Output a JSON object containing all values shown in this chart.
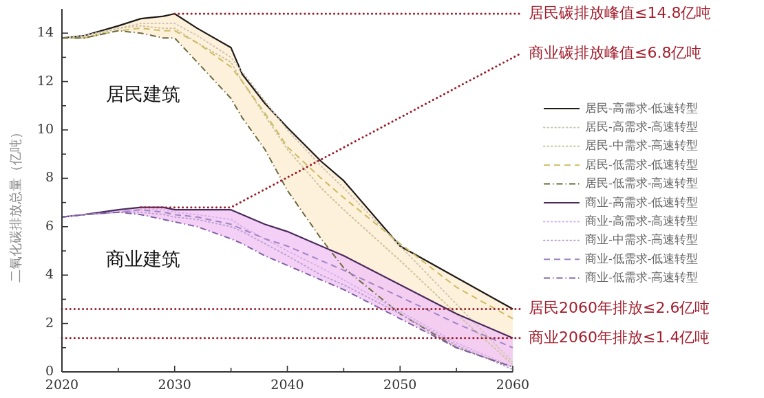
{
  "chart_data": {
    "type": "line",
    "ylabel": "二氧化碳排放总量（亿吨）",
    "x": [
      2020,
      2022,
      2025,
      2027,
      2029,
      2030,
      2032,
      2035,
      2036,
      2038,
      2040,
      2043,
      2045,
      2050,
      2055,
      2060
    ],
    "xlim": [
      2020,
      2060
    ],
    "xticks": [
      2020,
      {
        "value": 2025,
        "label": null
      },
      2030,
      {
        "value": 2035,
        "label": null
      },
      2040,
      {
        "value": 2045,
        "label": null
      },
      2050,
      {
        "value": 2055,
        "label": null
      },
      2060
    ],
    "ylim": [
      0,
      15
    ],
    "yticks": [
      0,
      {
        "value": 1,
        "label": null
      },
      2,
      {
        "value": 3,
        "label": null
      },
      4,
      {
        "value": 5,
        "label": null
      },
      6,
      {
        "value": 7,
        "label": null
      },
      8,
      {
        "value": 9,
        "label": null
      },
      10,
      {
        "value": 11,
        "label": null
      },
      12,
      {
        "value": 13,
        "label": null
      },
      14
    ],
    "legend": "right",
    "marker": "none",
    "series": [
      {
        "name": "居民-高需求-低速转型",
        "color": "#1e1a16",
        "line_style": "solid",
        "values": [
          13.8,
          13.9,
          14.3,
          14.6,
          14.7,
          14.8,
          14.2,
          13.4,
          12.3,
          11.1,
          10.1,
          8.7,
          7.9,
          5.2,
          3.9,
          2.6
        ],
        "lower": [
          13.8,
          13.8,
          14.1,
          14.0,
          13.8,
          13.8,
          12.8,
          11.3,
          10.5,
          9.2,
          7.5,
          5.5,
          4.3,
          2.4,
          1.0,
          0.2
        ],
        "upper": [
          13.8,
          13.9,
          14.3,
          14.6,
          14.7,
          14.8,
          14.2,
          13.4,
          12.3,
          11.1,
          10.1,
          8.7,
          7.9,
          5.2,
          3.9,
          2.6
        ]
      },
      {
        "name": "居民-高需求-高速转型",
        "color": "#cfc6b4",
        "line_style": "dotted",
        "values": [
          13.8,
          13.9,
          14.2,
          14.4,
          14.4,
          14.4,
          13.9,
          13.0,
          12.4,
          11.2,
          10.0,
          8.5,
          7.6,
          5.2,
          2.8,
          0.4
        ]
      },
      {
        "name": "居民-中需求-高速转型",
        "color": "#c9c39a",
        "line_style": "dotted",
        "values": [
          13.8,
          13.8,
          14.2,
          14.3,
          14.2,
          14.2,
          13.6,
          12.8,
          12.0,
          10.6,
          9.2,
          7.6,
          6.7,
          4.6,
          2.4,
          0.3
        ]
      },
      {
        "name": "居民-低需求-低速转型",
        "color": "#cdbb62",
        "line_style": "dashed",
        "values": [
          13.8,
          13.8,
          14.1,
          14.2,
          14.1,
          14.1,
          13.6,
          12.6,
          12.0,
          10.7,
          9.3,
          8.0,
          7.2,
          5.3,
          3.5,
          2.2
        ]
      },
      {
        "name": "居民-低需求-高速转型",
        "color": "#6b6a40",
        "line_style": "dashdot",
        "values": [
          13.8,
          13.8,
          14.1,
          14.0,
          13.8,
          13.8,
          12.8,
          11.3,
          10.5,
          9.2,
          7.5,
          5.5,
          4.3,
          2.4,
          1.0,
          0.2
        ]
      },
      {
        "name": "商业-高需求-低速转型",
        "color": "#4a2a5e",
        "line_style": "solid",
        "values": [
          6.4,
          6.5,
          6.7,
          6.8,
          6.8,
          6.7,
          6.7,
          6.7,
          6.5,
          6.1,
          5.8,
          5.2,
          4.8,
          3.6,
          2.4,
          1.4
        ],
        "lower": [
          6.4,
          6.5,
          6.6,
          6.5,
          6.3,
          6.2,
          6.0,
          5.5,
          5.3,
          4.8,
          4.4,
          3.8,
          3.4,
          2.2,
          1.0,
          0.2
        ],
        "upper": [
          6.4,
          6.5,
          6.7,
          6.8,
          6.8,
          6.7,
          6.7,
          6.7,
          6.5,
          6.1,
          5.8,
          5.2,
          4.8,
          3.6,
          2.4,
          1.4
        ]
      },
      {
        "name": "商业-高需求-高速转型",
        "color": "#d9b0e6",
        "line_style": "dotted",
        "values": [
          6.4,
          6.5,
          6.6,
          6.7,
          6.7,
          6.6,
          6.5,
          6.3,
          6.0,
          5.5,
          5.0,
          4.3,
          3.8,
          2.5,
          1.2,
          0.2
        ]
      },
      {
        "name": "商业-中需求-高速转型",
        "color": "#b9a2d2",
        "line_style": "dotted",
        "values": [
          6.4,
          6.5,
          6.6,
          6.6,
          6.5,
          6.4,
          6.3,
          6.0,
          5.8,
          5.3,
          4.8,
          4.0,
          3.6,
          2.4,
          1.1,
          0.1
        ]
      },
      {
        "name": "商业-低需求-低速转型",
        "color": "#a184c4",
        "line_style": "dashed",
        "values": [
          6.4,
          6.5,
          6.6,
          6.7,
          6.6,
          6.5,
          6.4,
          6.1,
          5.9,
          5.5,
          5.2,
          4.6,
          4.2,
          3.1,
          2.0,
          1.0
        ]
      },
      {
        "name": "商业-低需求-高速转型",
        "color": "#7e5ea6",
        "line_style": "dashdot",
        "values": [
          6.4,
          6.5,
          6.6,
          6.5,
          6.3,
          6.2,
          6.0,
          5.5,
          5.3,
          4.8,
          4.4,
          3.8,
          3.4,
          2.2,
          1.0,
          0.2
        ]
      }
    ],
    "ref_lines": [
      {
        "axis": "y",
        "value": 14.8,
        "label": "居民碳排放峰值≤14.8亿吨",
        "color": "#9b1b2a",
        "line_style": "dotted"
      },
      {
        "axis": "y",
        "value": 6.8,
        "label": "商业碳排放峰值≤6.8亿吨",
        "color": "#9b1b2a",
        "line_style": "dotted"
      },
      {
        "axis": "y",
        "value": 2.6,
        "label": "居民2060年排放≤2.6亿吨",
        "color": "#9b1b2a",
        "line_style": "dotted"
      },
      {
        "axis": "y",
        "value": 1.4,
        "label": "商业2060年排放≤1.4亿吨",
        "color": "#9b1b2a",
        "line_style": "dotted"
      }
    ],
    "annotations": [
      "居民建筑",
      "商业建筑"
    ]
  }
}
